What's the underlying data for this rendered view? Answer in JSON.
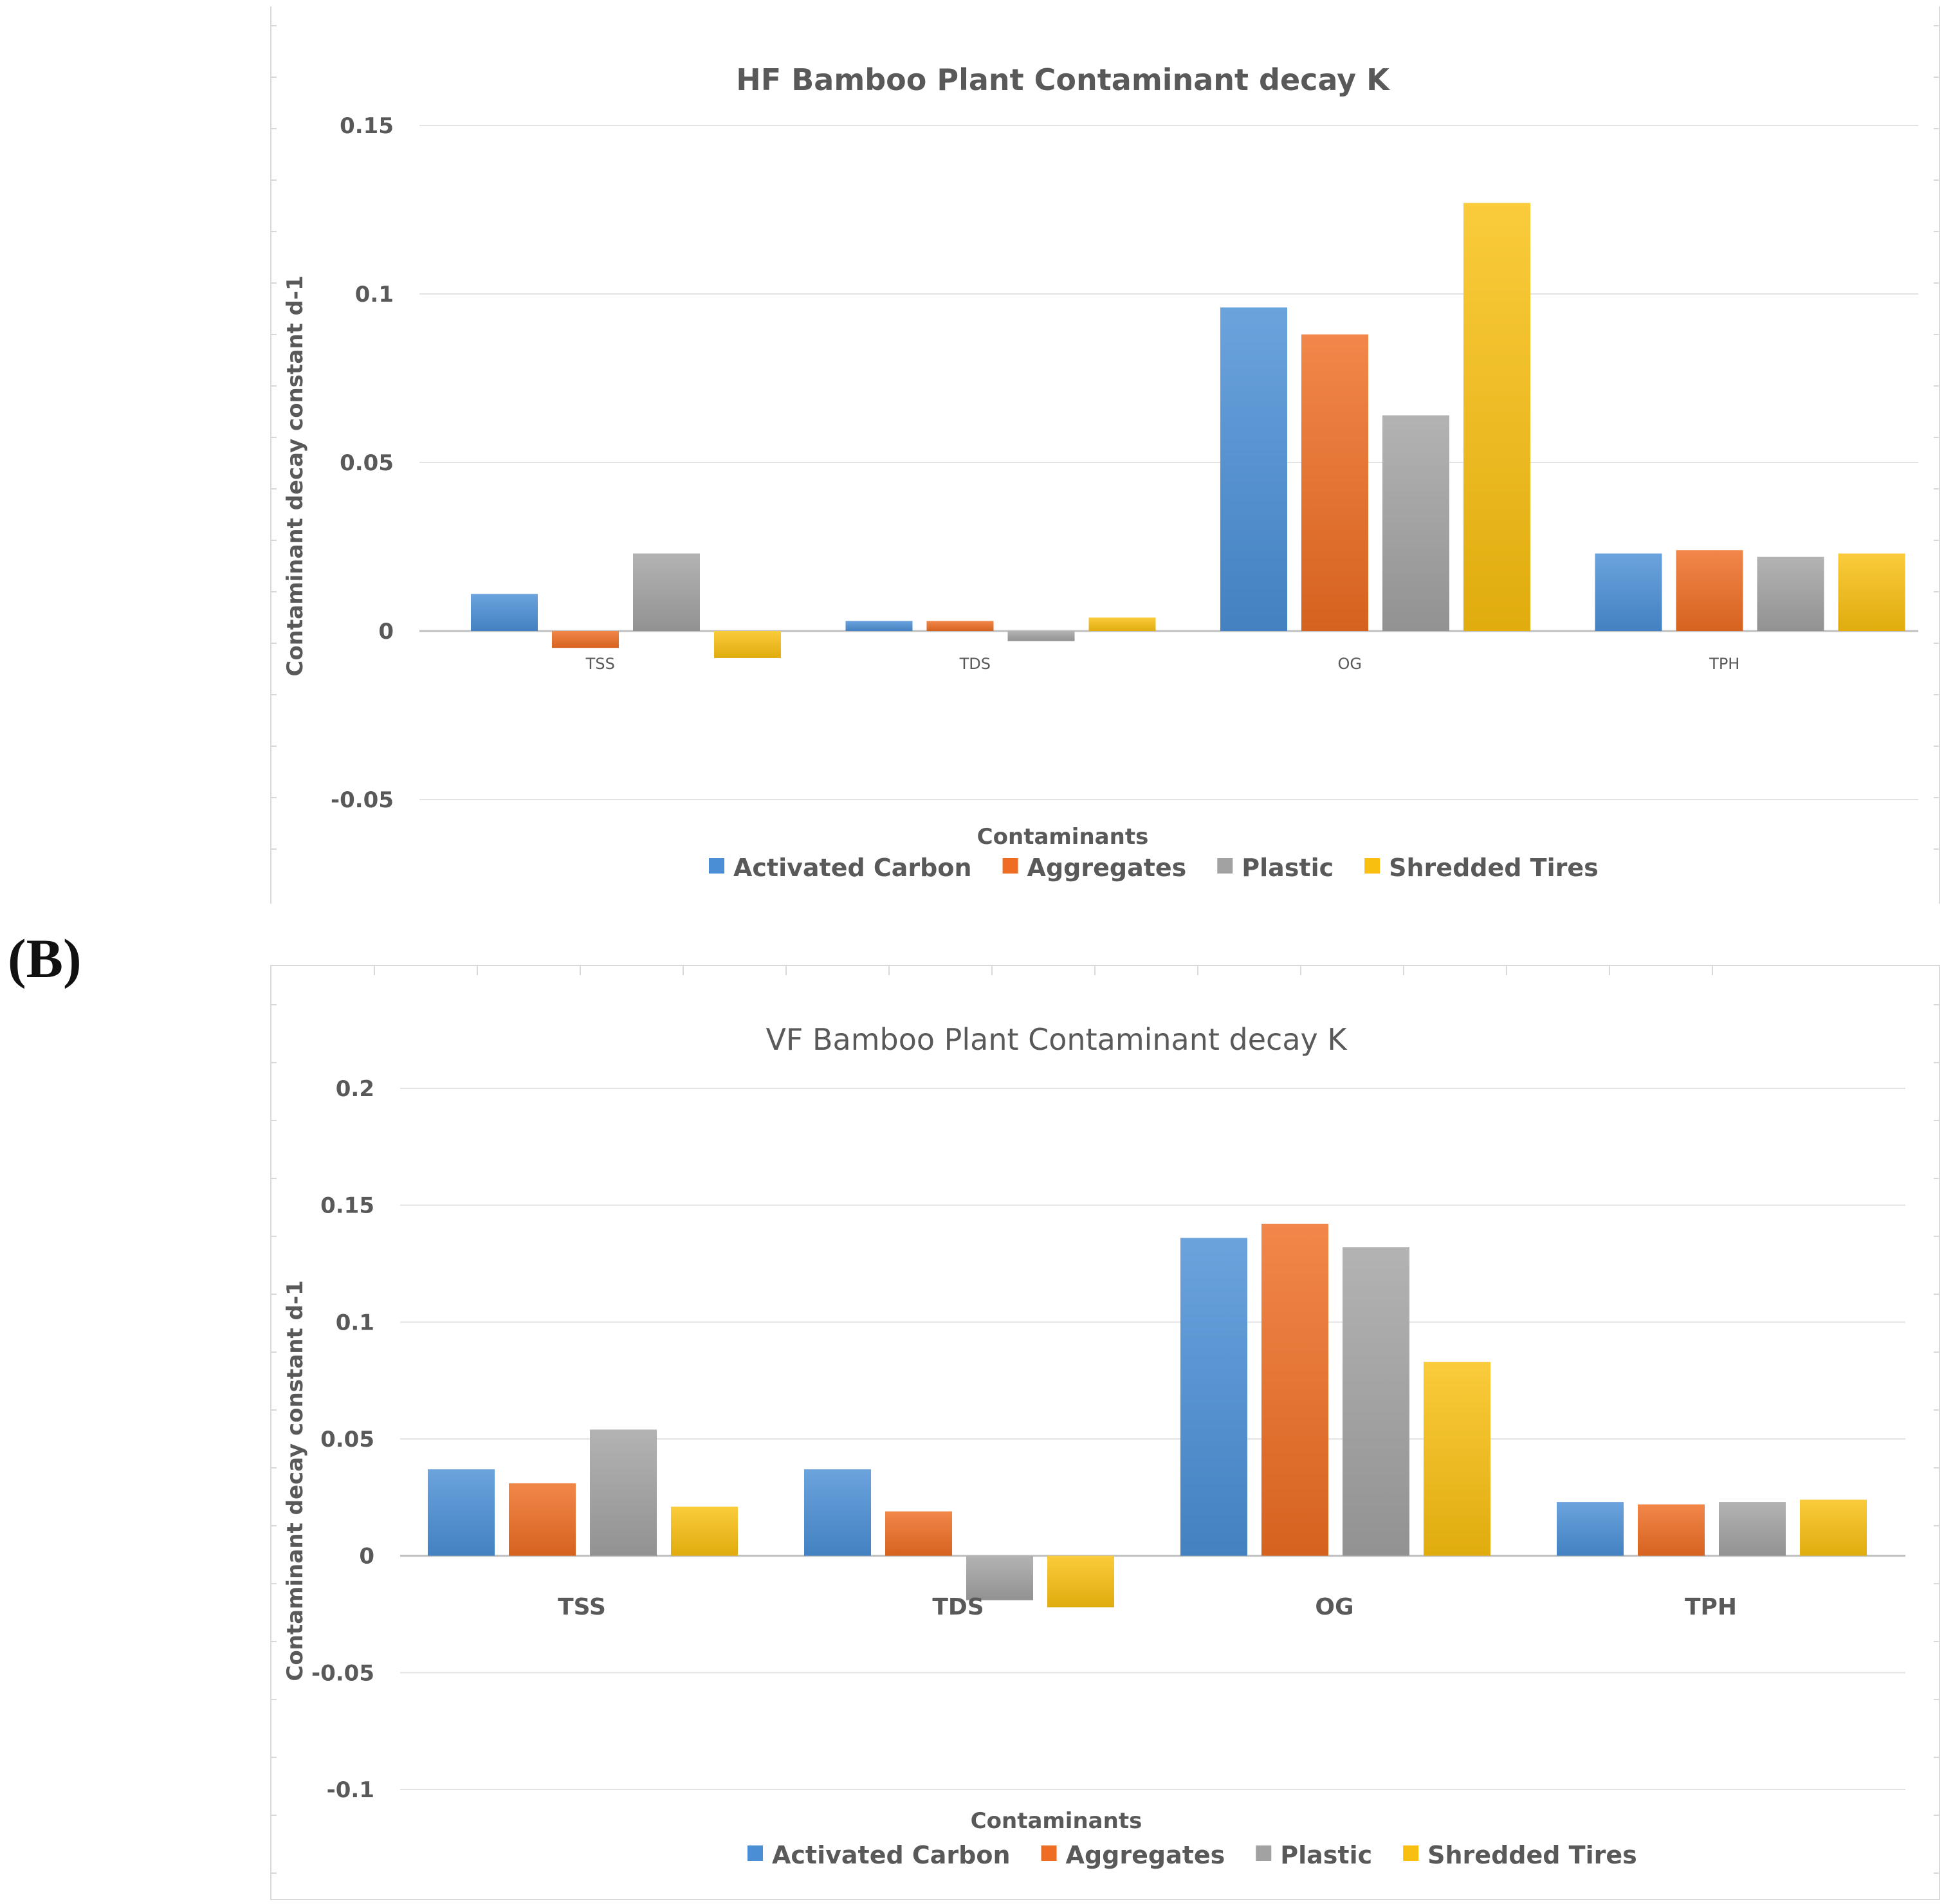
{
  "panel_b_label": "(B)",
  "chart_data": [
    {
      "type": "bar",
      "title": "HF Bamboo Plant Contaminant decay  K",
      "xlabel": "Contaminants",
      "ylabel": "Contaminant  decay constant d-1",
      "categories": [
        "TSS",
        "TDS",
        "OG",
        "TPH"
      ],
      "ylim": [
        -0.05,
        0.15
      ],
      "yticks": [
        -0.05,
        0,
        0.05,
        0.1,
        0.15
      ],
      "ytick_labels": [
        "-0.05",
        "0",
        "0.05",
        "0.1",
        "0.15"
      ],
      "grid": true,
      "legend_position": "bottom",
      "series": [
        {
          "name": "Activated Carbon",
          "color": "#4a8fd6",
          "values": [
            0.011,
            0.003,
            0.096,
            0.023
          ]
        },
        {
          "name": "Aggregates",
          "color": "#ee6d22",
          "values": [
            -0.005,
            0.003,
            0.088,
            0.024
          ]
        },
        {
          "name": "Plastic",
          "color": "#a2a2a2",
          "values": [
            0.023,
            -0.003,
            0.064,
            0.022
          ]
        },
        {
          "name": "Shredded Tires",
          "color": "#f9bf10",
          "values": [
            -0.008,
            0.004,
            0.127,
            0.023
          ]
        }
      ]
    },
    {
      "type": "bar",
      "title": "VF Bamboo Plant Contaminant decay  K",
      "xlabel": "Contaminants",
      "ylabel": "Contaminant  decay constant d-1",
      "categories": [
        "TSS",
        "TDS",
        "OG",
        "TPH"
      ],
      "ylim": [
        -0.1,
        0.2
      ],
      "yticks": [
        -0.1,
        -0.05,
        0,
        0.05,
        0.1,
        0.15,
        0.2
      ],
      "ytick_labels": [
        "-0.1",
        "-0.05",
        "0",
        "0.05",
        "0.1",
        "0.15",
        "0.2"
      ],
      "grid": true,
      "legend_position": "bottom",
      "series": [
        {
          "name": "Activated Carbon",
          "color": "#4a8fd6",
          "values": [
            0.037,
            0.037,
            0.136,
            0.023
          ]
        },
        {
          "name": "Aggregates",
          "color": "#ee6d22",
          "values": [
            0.031,
            0.019,
            0.142,
            0.022
          ]
        },
        {
          "name": "Plastic",
          "color": "#a2a2a2",
          "values": [
            0.054,
            -0.019,
            0.132,
            0.023
          ]
        },
        {
          "name": "Shredded Tires",
          "color": "#f9bf10",
          "values": [
            0.021,
            -0.022,
            0.083,
            0.024
          ]
        }
      ]
    }
  ]
}
